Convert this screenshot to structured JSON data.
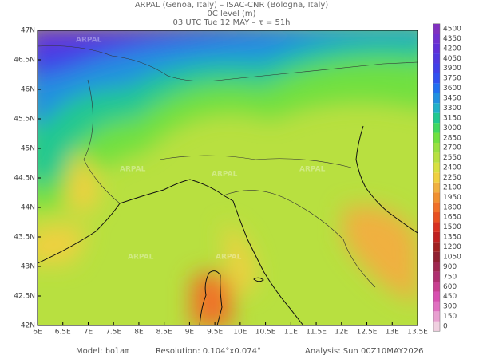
{
  "header": {
    "line1": "ARPAL (Genoa, Italy)  –  ISAC-CNR (Bologna, Italy)",
    "line2": "0C level (m)",
    "line3": "03 UTC Tue 12 MAY  –  τ = 51h"
  },
  "map": {
    "lat_labels": [
      "47N",
      "46.5N",
      "46N",
      "45.5N",
      "45N",
      "44.5N",
      "44N",
      "43.5N",
      "43N",
      "42.5N",
      "42N"
    ],
    "lon_labels": [
      "6E",
      "6.5E",
      "7E",
      "7.5E",
      "8E",
      "8.5E",
      "9E",
      "9.5E",
      "10E",
      "10.5E",
      "11E",
      "11.5E",
      "12E",
      "12.5E",
      "13E",
      "13.5E"
    ],
    "watermark": "ARPAL"
  },
  "colorbar": {
    "levels": [
      0,
      150,
      300,
      450,
      600,
      750,
      900,
      1050,
      1200,
      1350,
      1500,
      1650,
      1800,
      1950,
      2100,
      2250,
      2400,
      2550,
      2700,
      2850,
      3000,
      3150,
      3300,
      3450,
      3600,
      3750,
      3900,
      4050,
      4200,
      4350,
      4500
    ],
    "colors": [
      "#f0d0e0",
      "#e8a0d0",
      "#e070c0",
      "#d850b0",
      "#c84090",
      "#b03070",
      "#a02850",
      "#902030",
      "#a02020",
      "#c02020",
      "#d83020",
      "#e85020",
      "#f07028",
      "#f09030",
      "#f0b040",
      "#f0d040",
      "#d8e040",
      "#b8e040",
      "#98e040",
      "#70e040",
      "#40d860",
      "#20c890",
      "#20b0c8",
      "#2090e0",
      "#2070f0",
      "#3050f0",
      "#4040e8",
      "#5038e0",
      "#6030d8",
      "#7030d0",
      "#8030c0"
    ]
  },
  "footer": {
    "model_label": "Model:",
    "model": "bolam",
    "resolution": "Resolution: 0.104°x0.074°",
    "analysis": "Analysis: Sun 00Z10MAY2026"
  }
}
